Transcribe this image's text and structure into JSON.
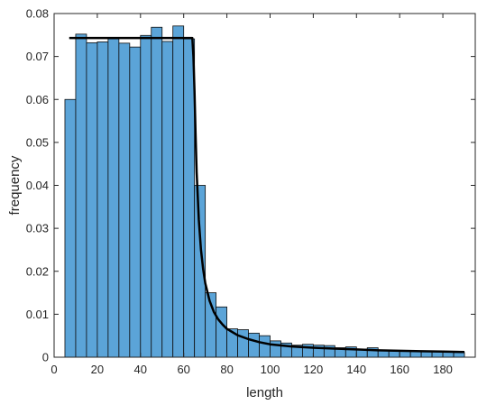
{
  "chart_data": {
    "type": "bar",
    "xlabel": "length",
    "ylabel": "frequency",
    "xlim": [
      0,
      195
    ],
    "ylim": [
      0,
      0.08
    ],
    "xticks": [
      0,
      20,
      40,
      60,
      80,
      100,
      120,
      140,
      160,
      180
    ],
    "yticks": [
      0,
      0.01,
      0.02,
      0.03,
      0.04,
      0.05,
      0.06,
      0.07,
      0.08
    ],
    "xtick_labels": [
      "0",
      "20",
      "40",
      "60",
      "80",
      "100",
      "120",
      "140",
      "160",
      "180"
    ],
    "ytick_labels": [
      "0",
      "0.01",
      "0.02",
      "0.03",
      "0.04",
      "0.05",
      "0.06",
      "0.07",
      "0.08"
    ],
    "grid": false,
    "bin_width": 5,
    "bin_edges_start": 5,
    "values": [
      0.06,
      0.0752,
      0.0732,
      0.0734,
      0.0741,
      0.0731,
      0.0722,
      0.0749,
      0.0768,
      0.0735,
      0.0771,
      0.0741,
      0.04,
      0.015,
      0.0117,
      0.0066,
      0.0064,
      0.0056,
      0.005,
      0.0038,
      0.0033,
      0.0028,
      0.003,
      0.0028,
      0.0027,
      0.0022,
      0.0024,
      0.0019,
      0.0022,
      0.0016,
      0.0015,
      0.0015,
      0.0014,
      0.0013,
      0.0013,
      0.0012,
      0.0011
    ],
    "fit_curve": {
      "x": [
        7,
        64,
        64.5,
        65,
        65.5,
        66,
        67,
        68,
        69,
        70,
        72,
        74,
        76,
        78,
        80,
        85,
        90,
        95,
        100,
        110,
        120,
        130,
        140,
        150,
        160,
        170,
        180,
        190
      ],
      "y": [
        0.0743,
        0.0743,
        0.07,
        0.062,
        0.052,
        0.043,
        0.032,
        0.025,
        0.0205,
        0.0172,
        0.0131,
        0.0105,
        0.0088,
        0.0076,
        0.0066,
        0.0051,
        0.0042,
        0.0035,
        0.003,
        0.0025,
        0.0022,
        0.002,
        0.0018,
        0.0016,
        0.0015,
        0.0014,
        0.0013,
        0.0012
      ]
    },
    "colors": {
      "bar_fill": "#5ba4d8",
      "bar_edge": "#0d0d0d",
      "curve": "#000000",
      "axis": "#262626"
    }
  }
}
